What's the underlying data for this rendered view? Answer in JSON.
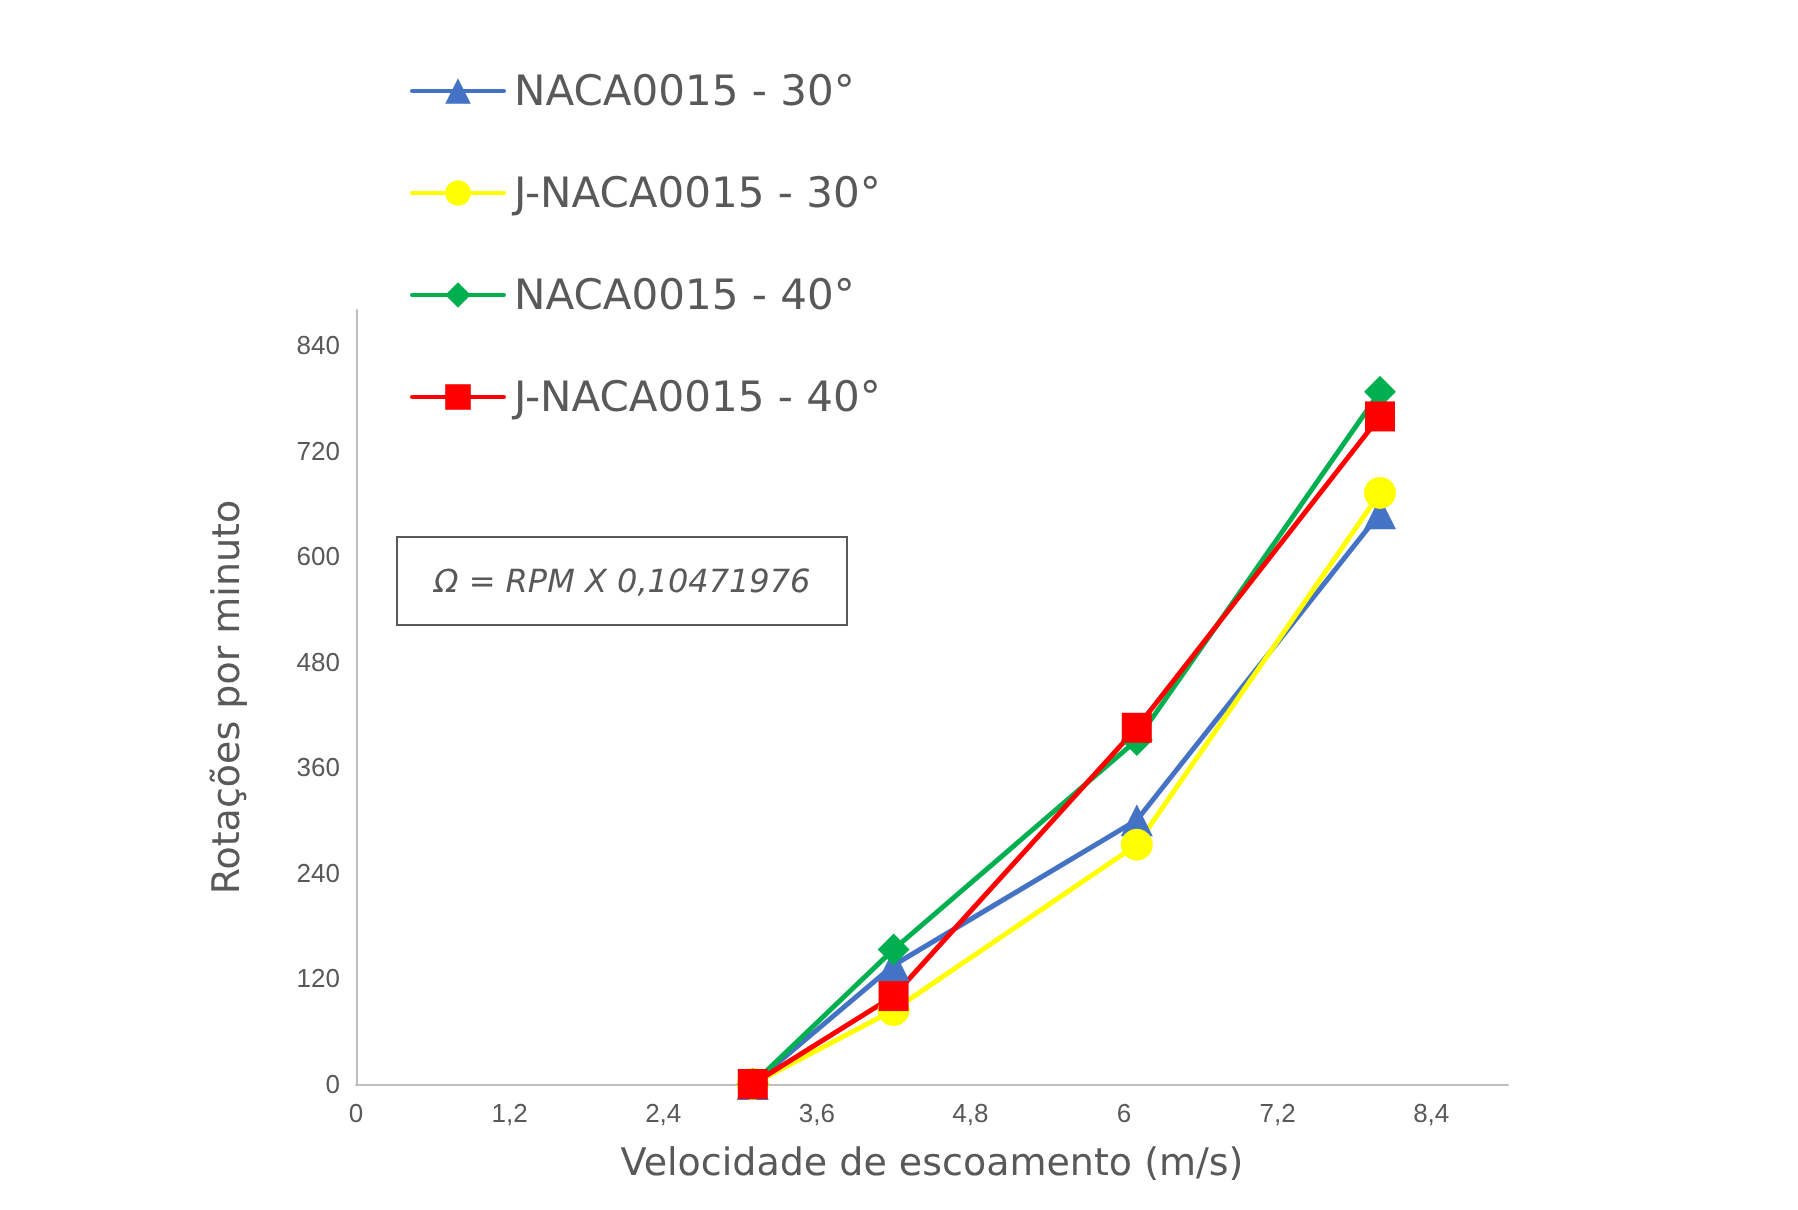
{
  "chart_data": {
    "type": "line",
    "xlabel": "Velocidade de escoamento (m/s)",
    "ylabel": "Rotações por minuto",
    "x": [
      3.1,
      4.2,
      6.1,
      8.0
    ],
    "series": [
      {
        "name": "NACA0015 - 30°",
        "color": "#4472c4",
        "marker": "triangle",
        "values": [
          0,
          135,
          300,
          649
        ]
      },
      {
        "name": "J-NACA0015 - 30°",
        "color": "#ffff00",
        "marker": "circle",
        "values": [
          0,
          84,
          272,
          672
        ]
      },
      {
        "name": "NACA0015 - 40°",
        "color": "#00b050",
        "marker": "diamond",
        "values": [
          0,
          153,
          391,
          787
        ]
      },
      {
        "name": "J-NACA0015 - 40°",
        "color": "#ff0000",
        "marker": "square",
        "values": [
          0,
          100,
          405,
          759
        ]
      }
    ],
    "xlim": [
      0,
      9
    ],
    "xticks": [
      {
        "value": 0,
        "label": "0"
      },
      {
        "value": 1.2,
        "label": "1,2"
      },
      {
        "value": 2.4,
        "label": "2,4"
      },
      {
        "value": 3.6,
        "label": "3,6"
      },
      {
        "value": 4.8,
        "label": "4,8"
      },
      {
        "value": 6,
        "label": "6"
      },
      {
        "value": 7.2,
        "label": "7,2"
      },
      {
        "value": 8.4,
        "label": "8,4"
      }
    ],
    "ylim": [
      0,
      880
    ],
    "yticks": [
      0,
      120,
      240,
      360,
      480,
      600,
      720,
      840
    ],
    "annotations": [
      "Ω = RPM X 0,10471976"
    ],
    "grid": false,
    "legend": "top left",
    "line_style": "solid"
  }
}
